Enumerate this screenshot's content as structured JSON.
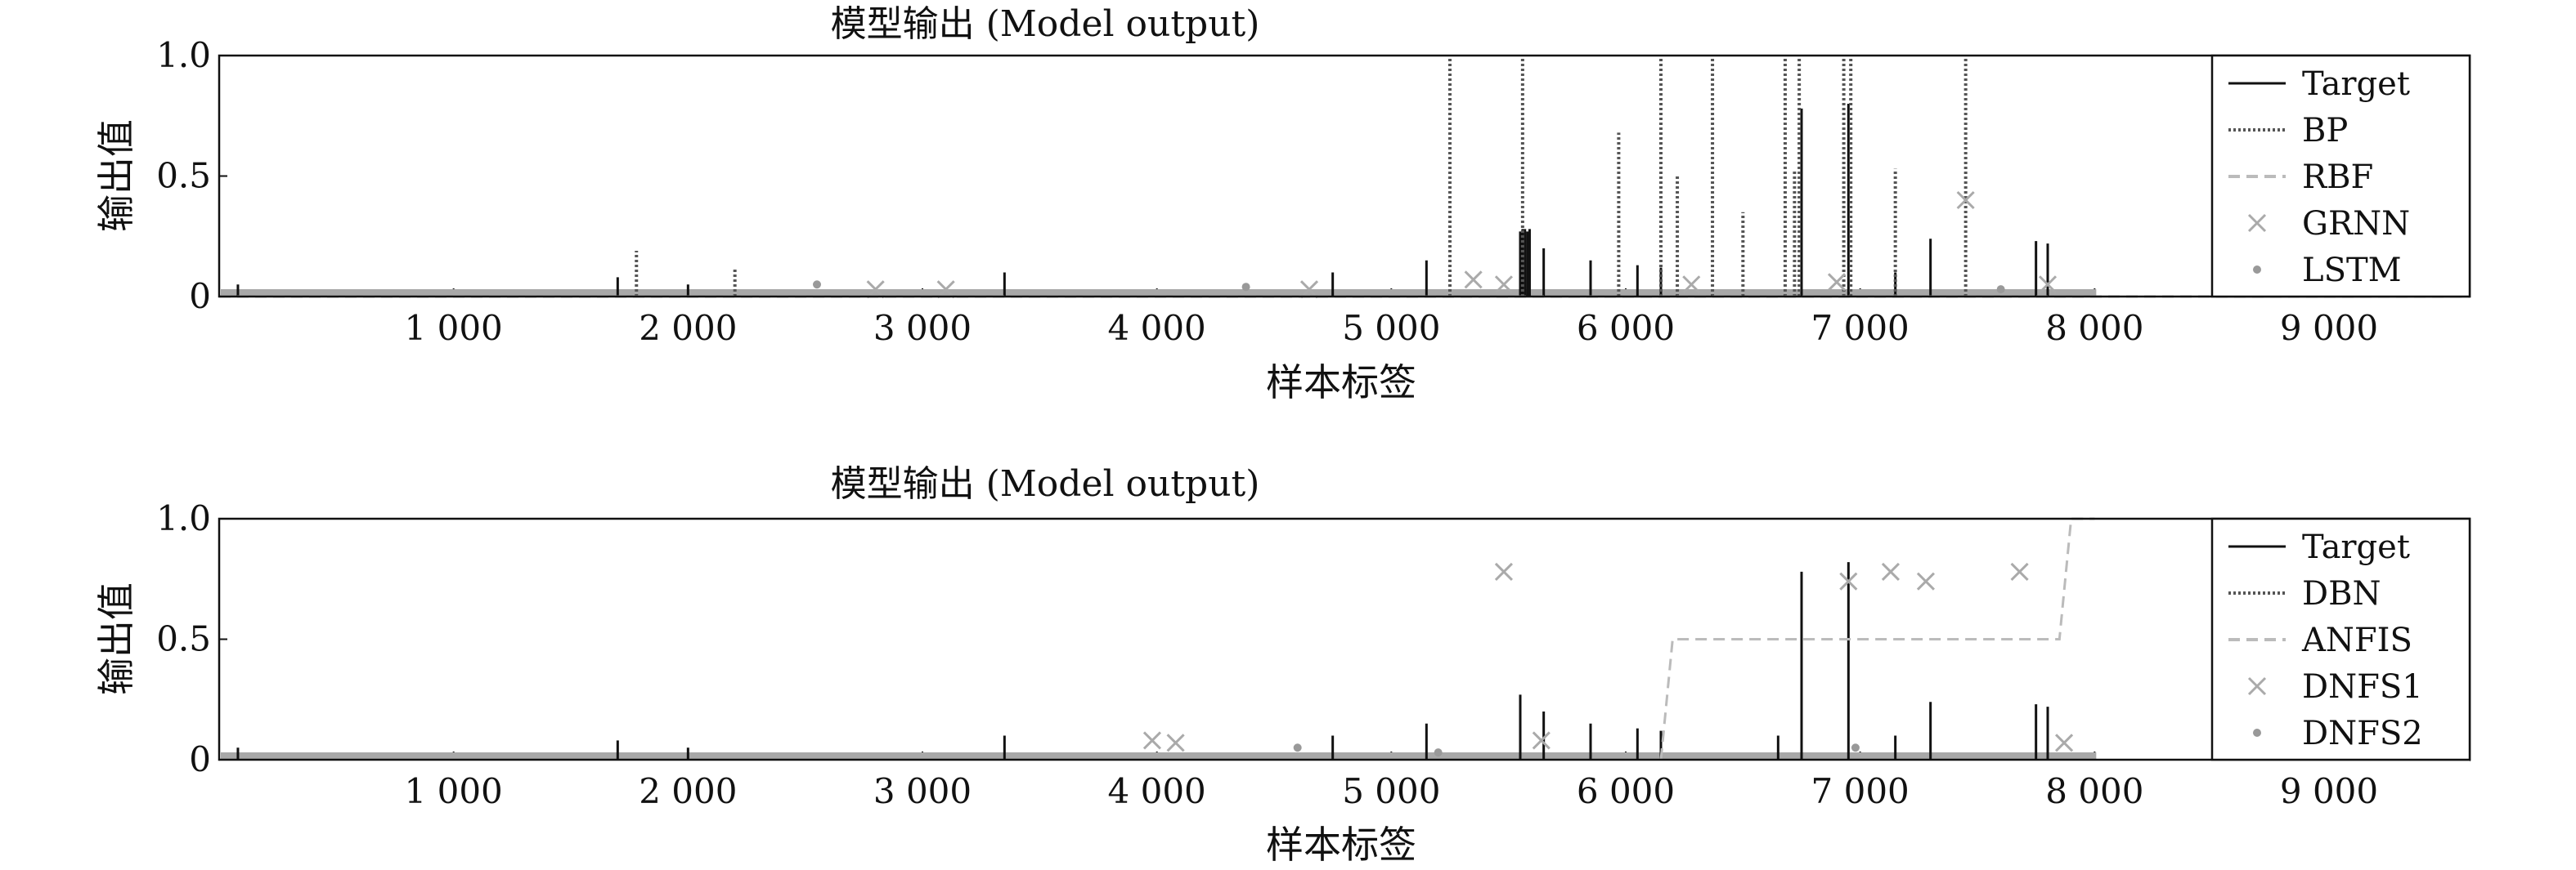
{
  "chart_data": [
    {
      "type": "line",
      "title": "模型输出 (Model output)",
      "xlabel": "样本标签",
      "ylabel": "输出值",
      "xlim": [
        0,
        9600
      ],
      "ylim": [
        0,
        1.0
      ],
      "xticks": [
        1000,
        2000,
        3000,
        4000,
        5000,
        6000,
        7000,
        8000,
        9000
      ],
      "xtick_labels": [
        "1 000",
        "2 000",
        "3 000",
        "4 000",
        "5 000",
        "6 000",
        "7 000",
        "8 000",
        "9 000"
      ],
      "yticks": [
        0,
        0.5,
        1.0
      ],
      "ytick_labels": [
        "0",
        "0.5",
        "1.0"
      ],
      "legend_position": "right",
      "grid": false,
      "series": [
        {
          "name": "Target",
          "style": "solid",
          "color": "#111111",
          "x": [
            80,
            1700,
            2000,
            3350,
            4750,
            5150,
            5550,
            5560,
            5570,
            5580,
            5590,
            5650,
            5850,
            6050,
            6150,
            6750,
            6950,
            7150,
            7300,
            7750,
            7800
          ],
          "values": [
            0.05,
            0.08,
            0.05,
            0.1,
            0.1,
            0.15,
            0.27,
            0.28,
            0.28,
            0.27,
            0.28,
            0.2,
            0.15,
            0.13,
            0.12,
            0.78,
            0.8,
            0.1,
            0.24,
            0.23,
            0.22
          ]
        },
        {
          "name": "BP",
          "style": "dotted",
          "color": "#555555",
          "x": [
            1780,
            2200,
            5250,
            5560,
            5970,
            6150,
            6220,
            6370,
            6500,
            6680,
            6720,
            6740,
            6930,
            6960,
            7150,
            7450
          ],
          "values": [
            0.19,
            0.12,
            1.0,
            1.0,
            0.68,
            1.0,
            0.5,
            1.0,
            0.35,
            1.0,
            0.52,
            1.0,
            1.0,
            1.0,
            0.53,
            1.0
          ]
        },
        {
          "name": "RBF",
          "style": "dashed",
          "color": "#bbbbbb",
          "x": [
            0,
            9600
          ],
          "values": [
            0.0,
            0.0
          ]
        },
        {
          "name": "GRNN",
          "style": "marker-x",
          "color": "#aaaaaa",
          "x": [
            2800,
            3100,
            4650,
            5350,
            5480,
            6280,
            6900,
            7450,
            7800
          ],
          "values": [
            0.03,
            0.03,
            0.03,
            0.07,
            0.05,
            0.05,
            0.06,
            0.4,
            0.05
          ]
        },
        {
          "name": "LSTM",
          "style": "marker-dot",
          "color": "#999999",
          "x": [
            2550,
            4380,
            7600
          ],
          "values": [
            0.05,
            0.04,
            0.03
          ]
        }
      ]
    },
    {
      "type": "line",
      "title": "模型输出 (Model output)",
      "xlabel": "样本标签",
      "ylabel": "输出值",
      "xlim": [
        0,
        9600
      ],
      "ylim": [
        0,
        1.0
      ],
      "xticks": [
        1000,
        2000,
        3000,
        4000,
        5000,
        6000,
        7000,
        8000,
        9000
      ],
      "xtick_labels": [
        "1 000",
        "2 000",
        "3 000",
        "4 000",
        "5 000",
        "6 000",
        "7 000",
        "8 000",
        "9 000"
      ],
      "yticks": [
        0,
        0.5,
        1.0
      ],
      "ytick_labels": [
        "0",
        "0.5",
        "1.0"
      ],
      "legend_position": "right",
      "grid": false,
      "series": [
        {
          "name": "Target",
          "style": "solid",
          "color": "#111111",
          "x": [
            80,
            1700,
            2000,
            3350,
            4750,
            5150,
            5550,
            5650,
            5850,
            6050,
            6150,
            6650,
            6750,
            6950,
            7150,
            7300,
            7750,
            7800
          ],
          "values": [
            0.05,
            0.08,
            0.05,
            0.1,
            0.1,
            0.15,
            0.27,
            0.2,
            0.15,
            0.13,
            0.12,
            0.1,
            0.78,
            0.82,
            0.1,
            0.24,
            0.23,
            0.22
          ]
        },
        {
          "name": "DBN",
          "style": "dotted",
          "color": "#555555",
          "x": [
            0,
            9600
          ],
          "values": [
            0.0,
            0.0
          ]
        },
        {
          "name": "ANFIS",
          "style": "dashed",
          "color": "#bbbbbb",
          "x": [
            6150,
            6200,
            7850,
            7900,
            8000
          ],
          "values": [
            0.0,
            0.5,
            0.5,
            1.0,
            1.0
          ]
        },
        {
          "name": "DNFS1",
          "style": "marker-x",
          "color": "#aaaaaa",
          "x": [
            3980,
            4080,
            5480,
            5640,
            6950,
            7130,
            7280,
            7680,
            7870
          ],
          "values": [
            0.08,
            0.07,
            0.78,
            0.08,
            0.74,
            0.78,
            0.74,
            0.78,
            0.07
          ]
        },
        {
          "name": "DNFS2",
          "style": "marker-dot",
          "color": "#999999",
          "x": [
            4600,
            5200,
            6980
          ],
          "values": [
            0.05,
            0.03,
            0.05
          ]
        }
      ]
    }
  ]
}
